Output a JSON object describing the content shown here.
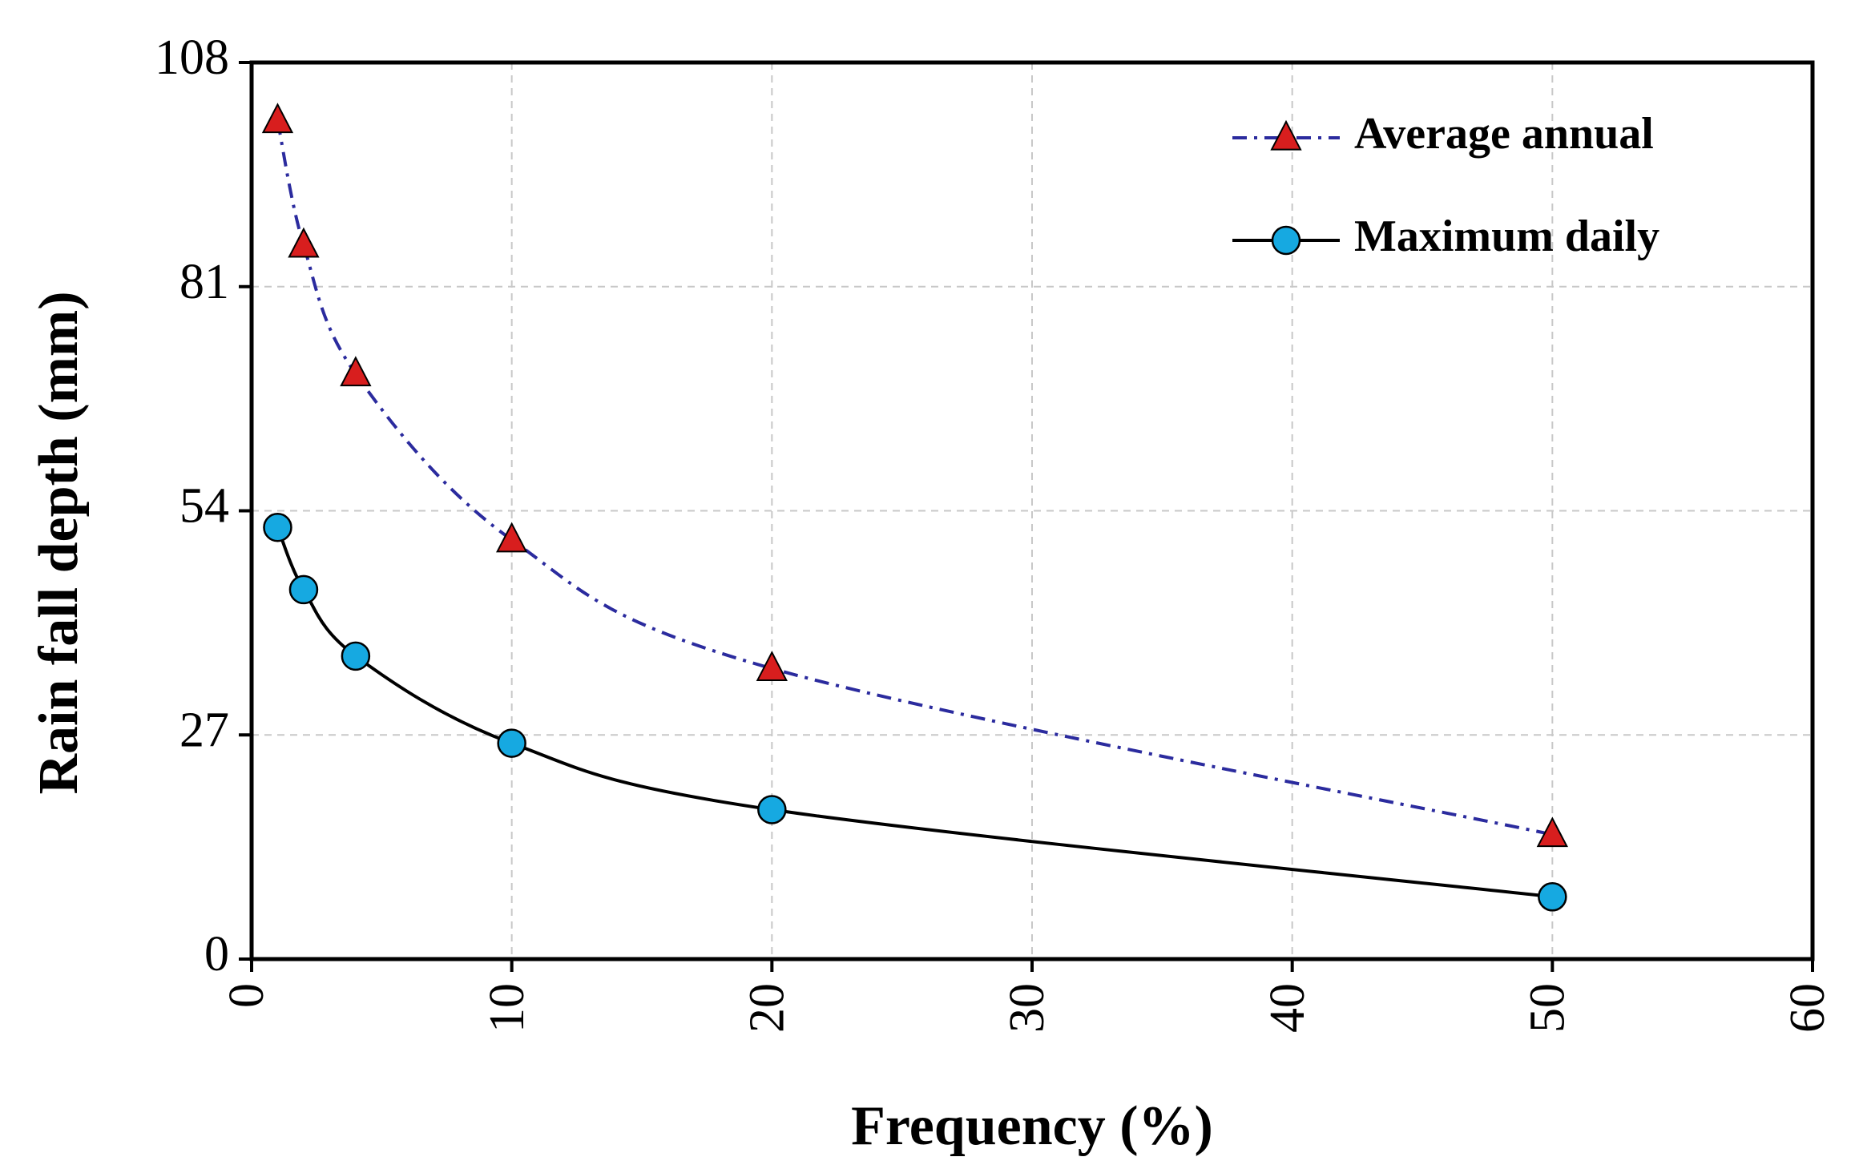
{
  "chart_data": {
    "type": "line",
    "title": "",
    "xlabel": "Frequency (%)",
    "ylabel": "Rain fall depth (mm)",
    "xlim": [
      0,
      60
    ],
    "ylim": [
      0,
      108
    ],
    "x_ticks": [
      0,
      10,
      20,
      30,
      40,
      50,
      60
    ],
    "y_ticks": [
      0,
      27,
      54,
      81,
      108
    ],
    "grid": true,
    "legend_position": "top-right",
    "series": [
      {
        "name": "Average annual",
        "marker": "triangle",
        "line_style": "dash-dot",
        "line_color": "#2b2b9e",
        "marker_color": "#d81e1e",
        "x": [
          1,
          2,
          4,
          10,
          20,
          50
        ],
        "values": [
          101,
          86,
          70.5,
          50.5,
          35,
          15
        ]
      },
      {
        "name": "Maximum daily",
        "marker": "circle",
        "line_style": "solid",
        "line_color": "#000000",
        "marker_color": "#16a9e1",
        "x": [
          1,
          2,
          4,
          10,
          20,
          50
        ],
        "values": [
          52,
          44.5,
          36.5,
          26,
          18,
          7.5
        ]
      }
    ]
  }
}
